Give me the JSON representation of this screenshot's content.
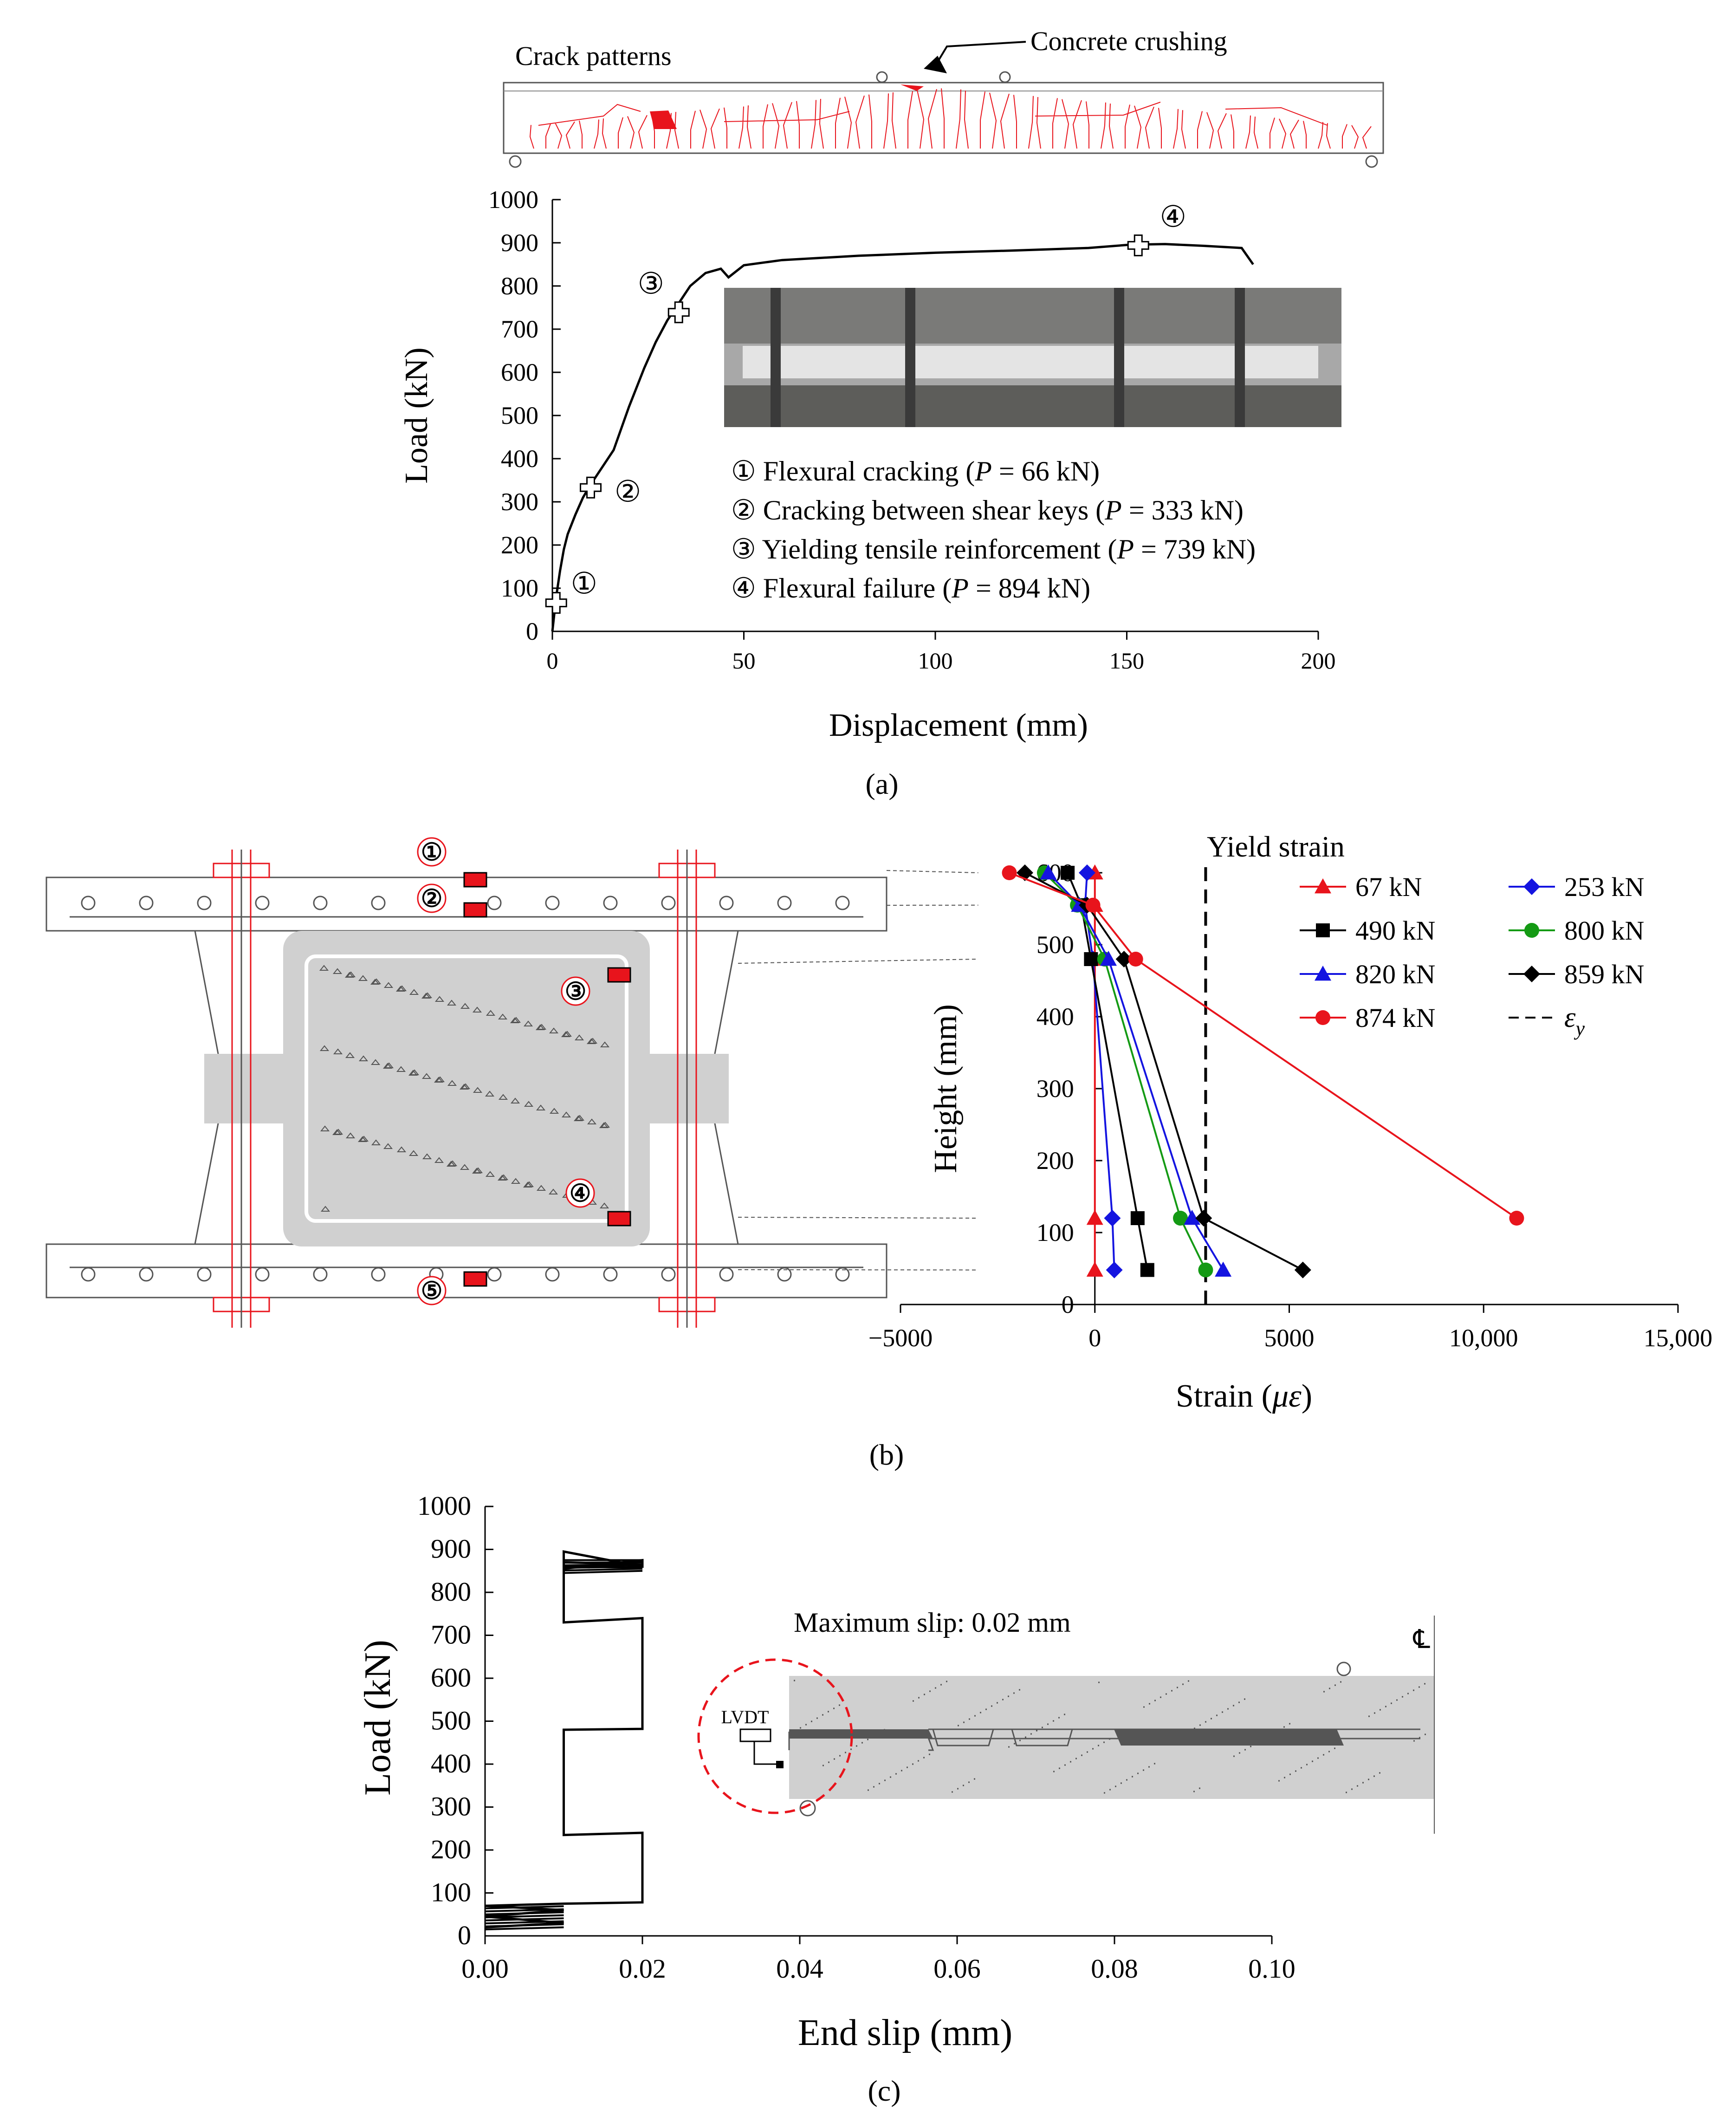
{
  "panel_a": {
    "crack_label": "Crack patterns",
    "crushing_label": "Concrete crushing",
    "panel_label": "(a)",
    "events": [
      {
        "id": "①",
        "text_pre": "① Flexural cracking (",
        "p": "P",
        "text_post": " = 66 kN)"
      },
      {
        "id": "②",
        "text_pre": "② Cracking between shear keys (",
        "p": "P",
        "text_post": " = 333 kN)"
      },
      {
        "id": "③",
        "text_pre": "③ Yielding tensile reinforcement (",
        "p": "P",
        "text_post": " = 739 kN)"
      },
      {
        "id": "④",
        "text_pre": "④ Flexural failure (",
        "p": "P",
        "text_post": " = 894 kN)"
      }
    ]
  },
  "panel_b": {
    "panel_label": "(b)",
    "gauge_labels": [
      "①",
      "②",
      "③",
      "④",
      "⑤"
    ],
    "yield_label": "Yield strain"
  },
  "panel_c": {
    "panel_label": "(c)",
    "max_slip_label": "Maximum slip: 0.02 mm",
    "lvdt_label": "LVDT",
    "centerline_label": "℄"
  },
  "colors": {
    "red": "#e8141c",
    "blue": "#1414e0",
    "green": "#149a14",
    "black": "#000000",
    "concrete": "#d0d0d0",
    "key": "#555555"
  },
  "chart_data": [
    {
      "type": "line",
      "xlabel": "Displacement (mm)",
      "ylabel": "Load (kN)",
      "xlim": [
        0,
        200
      ],
      "ylim": [
        0,
        1000
      ],
      "xticks": [
        0,
        50,
        100,
        150,
        200
      ],
      "yticks": [
        0,
        100,
        200,
        300,
        400,
        500,
        600,
        700,
        800,
        900,
        1000
      ],
      "series": [
        {
          "x": [
            0,
            1,
            2,
            3,
            4,
            6,
            8,
            10,
            13,
            16,
            20,
            24,
            27,
            30,
            33,
            36,
            40,
            44,
            46,
            50,
            60,
            80,
            100,
            120,
            140,
            150,
            153,
            160,
            170,
            180,
            183
          ],
          "y": [
            0,
            80,
            140,
            190,
            225,
            270,
            310,
            340,
            380,
            420,
            520,
            610,
            670,
            720,
            760,
            800,
            830,
            840,
            820,
            848,
            860,
            870,
            877,
            882,
            888,
            895,
            896,
            897,
            893,
            888,
            850
          ]
        }
      ],
      "markers": [
        {
          "label": "①",
          "x": 1,
          "y": 66
        },
        {
          "label": "②",
          "x": 10,
          "y": 333
        },
        {
          "label": "③",
          "x": 33,
          "y": 739
        },
        {
          "label": "④",
          "x": 153,
          "y": 894
        }
      ]
    },
    {
      "type": "line",
      "xlabel": "Strain (με)",
      "ylabel": "Height (mm)",
      "xlim": [
        -5000,
        15000
      ],
      "ylim": [
        0,
        600
      ],
      "xticks": [
        -5000,
        0,
        5000,
        10000,
        15000
      ],
      "xtick_labels": [
        "−5000",
        "0",
        "5000",
        "10,000",
        "15,000"
      ],
      "yticks": [
        0,
        100,
        200,
        300,
        400,
        500,
        600
      ],
      "heights": [
        600,
        555,
        480,
        120,
        48
      ],
      "yield_strain": 2850,
      "legend_yield": "ε",
      "legend_yield_sub": "y",
      "series": [
        {
          "name": "67 kN",
          "color": "#e8141c",
          "marker": "triangle",
          "x": [
            0,
            0,
            0,
            0,
            0
          ]
        },
        {
          "name": "253 kN",
          "color": "#1414e0",
          "marker": "diamond",
          "x": [
            -200,
            -250,
            -50,
            450,
            500
          ]
        },
        {
          "name": "490 kN",
          "color": "#000000",
          "marker": "square",
          "x": [
            -700,
            -350,
            -100,
            1100,
            1350
          ]
        },
        {
          "name": "800 kN",
          "color": "#149a14",
          "marker": "circle",
          "x": [
            -1300,
            -450,
            250,
            2200,
            2850
          ]
        },
        {
          "name": "820 kN",
          "color": "#1414e0",
          "marker": "triangle",
          "x": [
            -1200,
            -400,
            350,
            2500,
            3300
          ]
        },
        {
          "name": "859 kN",
          "color": "#000000",
          "marker": "diamond",
          "x": [
            -1800,
            -200,
            750,
            2800,
            5350
          ]
        },
        {
          "name": "874 kN",
          "color": "#e8141c",
          "marker": "circle",
          "x": [
            -2200,
            -50,
            1050,
            10850,
            null
          ]
        }
      ]
    },
    {
      "type": "line",
      "xlabel": "End slip (mm)",
      "ylabel": "Load (kN)",
      "xlim": [
        0,
        0.1
      ],
      "ylim": [
        0,
        1000
      ],
      "xticks": [
        0,
        0.02,
        0.04,
        0.06,
        0.08,
        0.1
      ],
      "xtick_labels": [
        "0.00",
        "0.02",
        "0.04",
        "0.06",
        "0.08",
        "0.10"
      ],
      "yticks": [
        0,
        100,
        200,
        300,
        400,
        500,
        600,
        700,
        800,
        900,
        1000
      ],
      "series": [
        {
          "x": [
            0,
            0.01,
            0,
            0.01,
            0,
            0.01,
            0.01,
            0.02,
            0.02,
            0.01,
            0.01,
            0.02,
            0.02,
            0.01,
            0.01,
            0.02,
            0.02,
            0.01,
            0.01,
            0.02,
            0.01,
            0.02
          ],
          "y": [
            20,
            30,
            45,
            60,
            70,
            75,
            75,
            78,
            240,
            235,
            480,
            482,
            740,
            730,
            895,
            860,
            875,
            855,
            870,
            865,
            860,
            858
          ]
        }
      ]
    }
  ]
}
